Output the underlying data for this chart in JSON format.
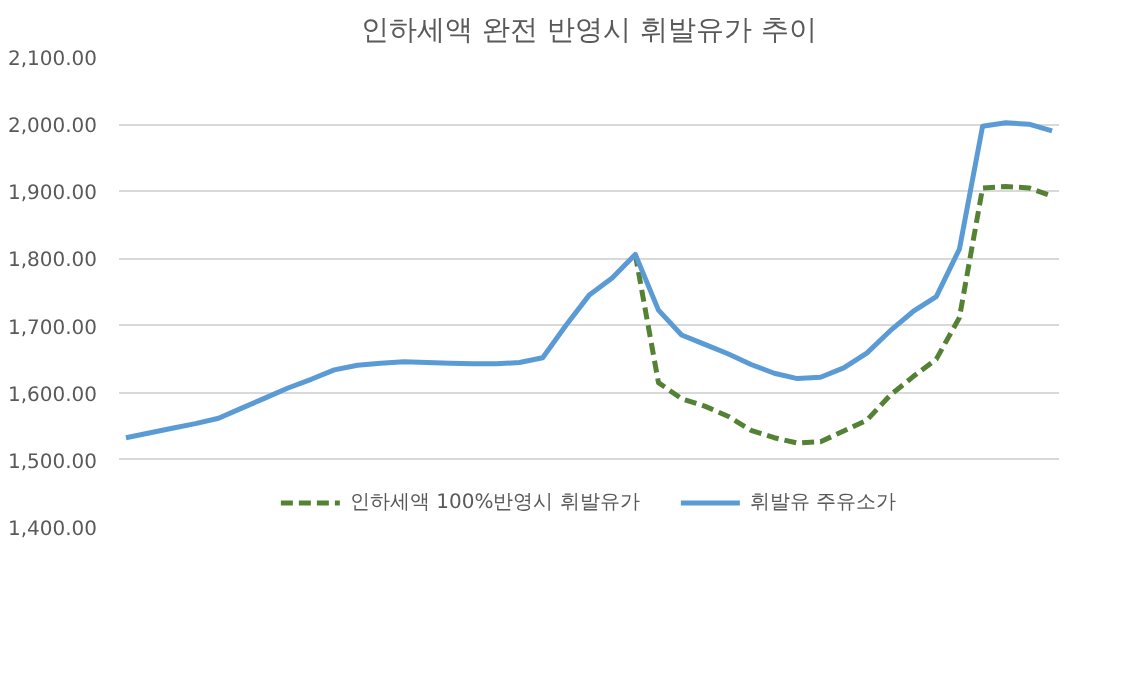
{
  "chart_data": {
    "type": "line",
    "title": "인하세액 완전 반영시 휘발유가 추이",
    "categories": [
      null,
      null,
      null,
      null,
      null,
      null,
      null,
      null,
      null,
      null,
      null,
      null,
      null,
      null,
      null,
      null,
      null,
      null,
      null,
      null,
      null,
      null,
      null,
      null,
      null,
      null,
      null,
      null,
      null,
      null,
      null,
      null,
      null,
      null,
      null,
      null,
      null,
      null,
      null,
      null,
      null
    ],
    "ylim": [
      1400,
      2100
    ],
    "yticks": [
      {
        "value": 1400,
        "label": "1,400.00"
      },
      {
        "value": 1500,
        "label": "1,500.00"
      },
      {
        "value": 1600,
        "label": "1,600.00"
      },
      {
        "value": 1700,
        "label": "1,700.00"
      },
      {
        "value": 1800,
        "label": "1,800.00"
      },
      {
        "value": 1900,
        "label": "1,900.00"
      },
      {
        "value": 2000,
        "label": "2,000.00"
      },
      {
        "value": 2100,
        "label": "2,100.00"
      }
    ],
    "tick_labels": "y",
    "grid": "y",
    "legend": "bottom",
    "marker": "none",
    "series": [
      {
        "name": "인하세액 100%반영시 휘발유가",
        "color": "#548235",
        "line_style": "dashed",
        "values": [
          null,
          null,
          null,
          null,
          null,
          null,
          null,
          null,
          null,
          null,
          null,
          null,
          null,
          null,
          null,
          null,
          null,
          null,
          null,
          null,
          null,
          null,
          1806,
          1615,
          1591,
          1580,
          1565,
          1544,
          1533,
          1525,
          1527,
          1543,
          1559,
          1596,
          1624,
          1650,
          1712,
          1905,
          1907,
          1905,
          1893
        ]
      },
      {
        "name": "휘발유 주유소가",
        "color": "#5b9bd5",
        "line_style": "solid",
        "values": [
          1533,
          1540,
          1547,
          1554,
          1562,
          1577,
          1592,
          1607,
          1620,
          1634,
          1641,
          1644,
          1646,
          1645,
          1644,
          1643,
          1643,
          1645,
          1652,
          1700,
          1745,
          1771,
          1806,
          1723,
          1686,
          1672,
          1658,
          1642,
          1629,
          1621,
          1623,
          1637,
          1659,
          1692,
          1721,
          1743,
          1814,
          1997,
          2002,
          2000,
          1990
        ]
      }
    ]
  }
}
